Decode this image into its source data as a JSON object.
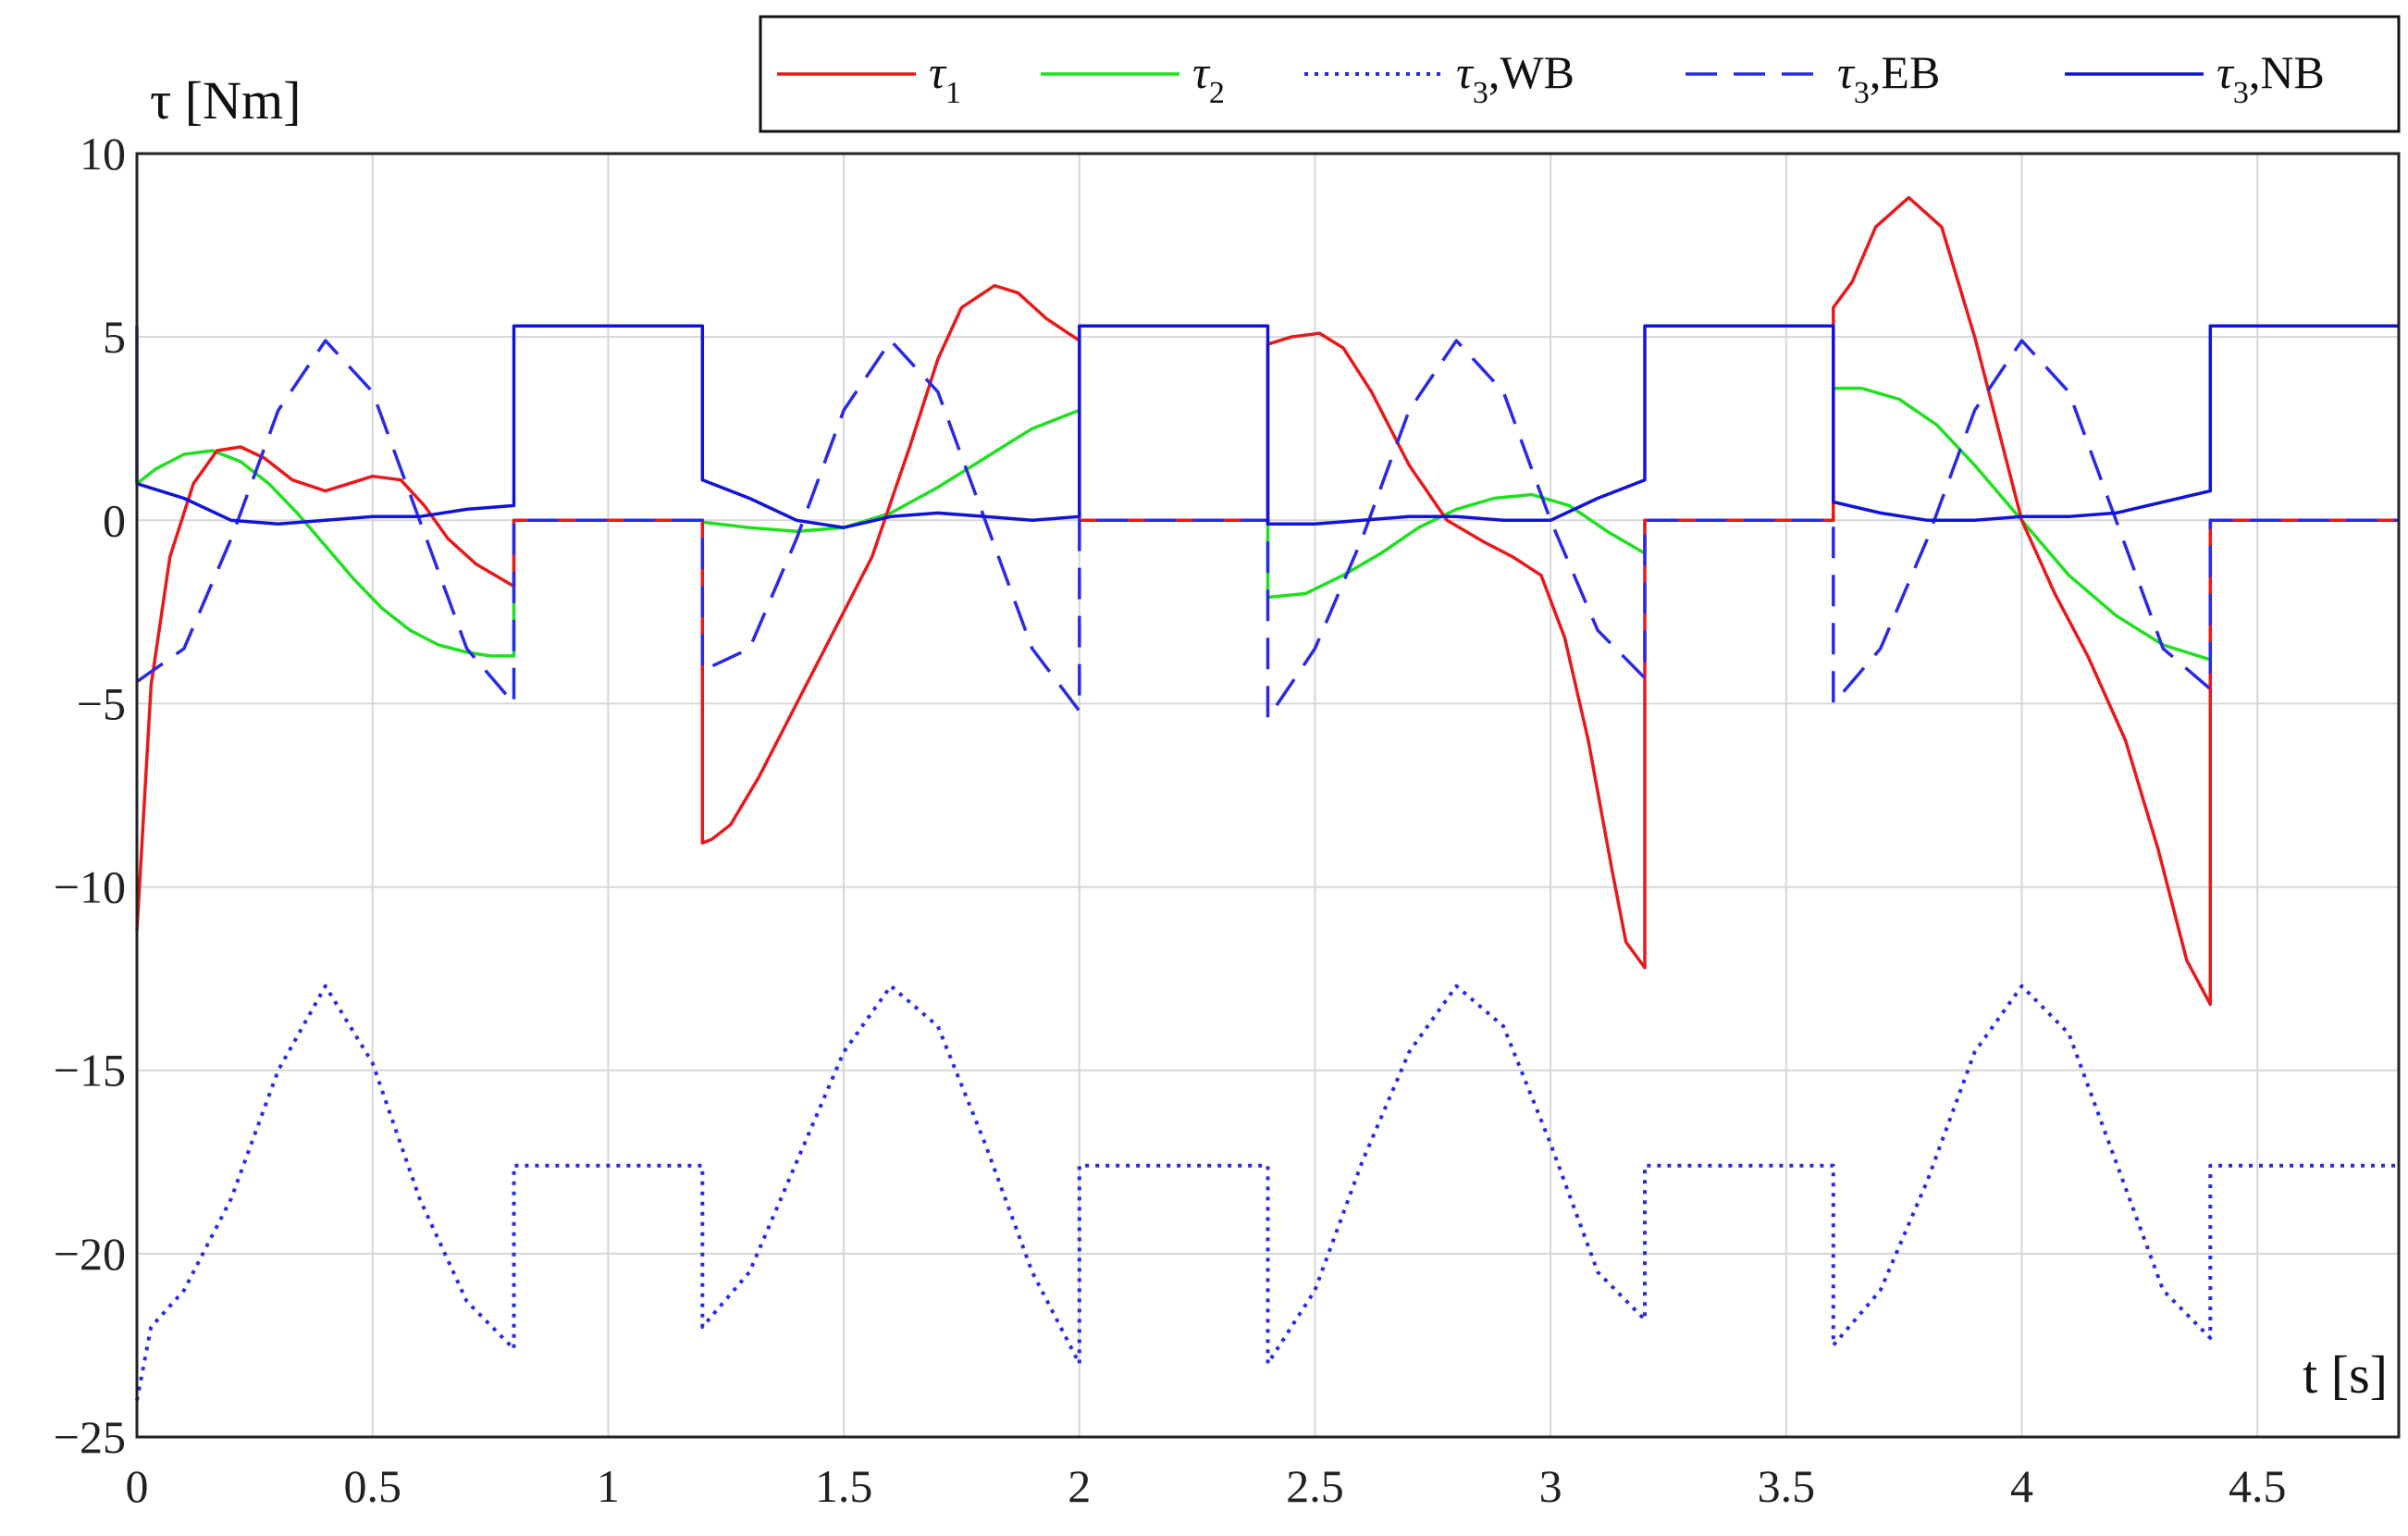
{
  "chart_data": {
    "type": "line",
    "xlabel": "t [s]",
    "ylabel": "τ [Nm]",
    "xlim": [
      0,
      4.8
    ],
    "ylim": [
      -25,
      10
    ],
    "xticks": [
      0,
      0.5,
      1,
      1.5,
      2,
      2.5,
      3,
      3.5,
      4,
      4.5
    ],
    "xtick_labels": [
      "0",
      "0.5",
      "1",
      "1.5",
      "2",
      "2.5",
      "3",
      "3.5",
      "4",
      "4.5"
    ],
    "yticks": [
      10,
      5,
      0,
      -5,
      -10,
      -15,
      -20,
      -25
    ],
    "ytick_labels": [
      "10",
      "5",
      "0",
      "−5",
      "−10",
      "−15",
      "−20",
      "−25"
    ],
    "grid": true,
    "legend_position": "top-right, outside above plot",
    "series": [
      {
        "name": "τ1",
        "legend": {
          "symbol": "τ",
          "sub": "1",
          "suffix": ""
        },
        "color": "#e8191b",
        "style": "solid",
        "x": [
          0,
          0.03,
          0.07,
          0.12,
          0.17,
          0.22,
          0.27,
          0.33,
          0.4,
          0.45,
          0.5,
          0.56,
          0.61,
          0.66,
          0.72,
          0.8,
          0.8,
          1.2,
          1.2,
          1.22,
          1.26,
          1.32,
          1.4,
          1.48,
          1.56,
          1.64,
          1.7,
          1.75,
          1.82,
          1.87,
          1.93,
          2.0,
          2.0,
          2.4,
          2.4,
          2.45,
          2.51,
          2.56,
          2.62,
          2.7,
          2.78,
          2.86,
          2.92,
          2.98,
          3.03,
          3.08,
          3.13,
          3.16,
          3.2,
          3.2,
          3.6,
          3.6,
          3.64,
          3.69,
          3.76,
          3.83,
          3.9,
          3.96,
          4.0,
          4.07,
          4.14,
          4.22,
          4.29,
          4.35,
          4.4,
          4.4,
          4.8
        ],
        "y": [
          -11.2,
          -4.5,
          -1.0,
          1.0,
          1.9,
          2.0,
          1.7,
          1.1,
          0.8,
          1.0,
          1.2,
          1.1,
          0.4,
          -0.5,
          -1.2,
          -1.8,
          0,
          0,
          -8.8,
          -8.7,
          -8.3,
          -7.0,
          -5.0,
          -3.0,
          -1.0,
          2.0,
          4.4,
          5.8,
          6.4,
          6.2,
          5.5,
          4.9,
          0,
          0,
          4.8,
          5.0,
          5.1,
          4.7,
          3.5,
          1.5,
          0.0,
          -0.6,
          -1.0,
          -1.5,
          -3.2,
          -6.0,
          -9.5,
          -11.5,
          -12.2,
          0,
          0,
          5.8,
          6.5,
          8.0,
          8.8,
          8.0,
          5.0,
          2.0,
          0.0,
          -2.0,
          -3.7,
          -6.0,
          -9.0,
          -12.0,
          -13.2,
          0,
          0
        ]
      },
      {
        "name": "τ2",
        "legend": {
          "symbol": "τ",
          "sub": "2",
          "suffix": ""
        },
        "color": "#1fe01f",
        "style": "solid",
        "x": [
          0,
          0.04,
          0.1,
          0.16,
          0.22,
          0.28,
          0.34,
          0.4,
          0.46,
          0.52,
          0.58,
          0.64,
          0.7,
          0.75,
          0.8,
          0.8,
          1.2,
          1.2,
          1.3,
          1.4,
          1.5,
          1.6,
          1.7,
          1.8,
          1.9,
          2.0,
          2.0,
          2.4,
          2.4,
          2.48,
          2.56,
          2.64,
          2.72,
          2.8,
          2.88,
          2.96,
          3.04,
          3.12,
          3.2,
          3.2,
          3.6,
          3.6,
          3.66,
          3.74,
          3.82,
          3.9,
          4.0,
          4.1,
          4.2,
          4.3,
          4.4,
          4.4,
          4.8
        ],
        "y": [
          1.0,
          1.4,
          1.8,
          1.9,
          1.6,
          1.0,
          0.2,
          -0.7,
          -1.6,
          -2.4,
          -3.0,
          -3.4,
          -3.6,
          -3.7,
          -3.7,
          0,
          0,
          -0.05,
          -0.2,
          -0.3,
          -0.2,
          0.2,
          0.9,
          1.7,
          2.5,
          3.0,
          0,
          0,
          -2.1,
          -2.0,
          -1.5,
          -0.9,
          -0.2,
          0.3,
          0.6,
          0.7,
          0.4,
          -0.3,
          -0.9,
          0,
          0,
          3.6,
          3.6,
          3.3,
          2.6,
          1.5,
          0.0,
          -1.5,
          -2.6,
          -3.4,
          -3.8,
          0,
          0
        ]
      },
      {
        "name": "τ3,WB",
        "legend": {
          "symbol": "τ",
          "sub": "3",
          "suffix": ",WB"
        },
        "color": "#2a2ae6",
        "style": "dotted",
        "x": [
          0,
          0.03,
          0.1,
          0.2,
          0.3,
          0.4,
          0.5,
          0.6,
          0.7,
          0.8,
          0.8,
          1.2,
          1.2,
          1.3,
          1.4,
          1.5,
          1.6,
          1.7,
          1.8,
          1.9,
          2.0,
          2.0,
          2.4,
          2.4,
          2.5,
          2.6,
          2.7,
          2.8,
          2.9,
          3.0,
          3.1,
          3.2,
          3.2,
          3.6,
          3.6,
          3.7,
          3.8,
          3.9,
          4.0,
          4.1,
          4.2,
          4.3,
          4.4,
          4.4,
          4.8
        ],
        "y": [
          -24.0,
          -22.0,
          -21.0,
          -18.5,
          -15.0,
          -12.7,
          -14.8,
          -18.5,
          -21.3,
          -22.6,
          -17.6,
          -17.6,
          -22.0,
          -20.5,
          -17.5,
          -14.5,
          -12.7,
          -13.8,
          -17.0,
          -20.5,
          -23.0,
          -17.6,
          -17.6,
          -23.0,
          -21.0,
          -17.5,
          -14.5,
          -12.7,
          -13.8,
          -17.0,
          -20.5,
          -21.8,
          -17.6,
          -17.6,
          -22.5,
          -21.0,
          -18.0,
          -14.5,
          -12.7,
          -14.0,
          -17.5,
          -21.0,
          -22.3,
          -17.6,
          -17.6
        ]
      },
      {
        "name": "τ3,EB",
        "legend": {
          "symbol": "τ",
          "sub": "3",
          "suffix": ",EB"
        },
        "color": "#2a2ae6",
        "style": "dashed",
        "x": [
          0,
          0.1,
          0.2,
          0.3,
          0.4,
          0.5,
          0.6,
          0.7,
          0.8,
          0.8,
          1.2,
          1.2,
          1.3,
          1.4,
          1.5,
          1.6,
          1.7,
          1.8,
          1.9,
          2.0,
          2.0,
          2.4,
          2.4,
          2.5,
          2.6,
          2.7,
          2.8,
          2.9,
          3.0,
          3.1,
          3.2,
          3.2,
          3.6,
          3.6,
          3.7,
          3.8,
          3.9,
          4.0,
          4.1,
          4.2,
          4.3,
          4.4,
          4.4,
          4.8
        ],
        "y": [
          -4.4,
          -3.5,
          -0.5,
          3.0,
          4.9,
          3.5,
          0.0,
          -3.5,
          -5.0,
          0,
          0,
          -4.1,
          -3.5,
          -0.5,
          3.0,
          4.9,
          3.5,
          0.0,
          -3.5,
          -5.2,
          0,
          0,
          -5.4,
          -3.5,
          -0.5,
          3.0,
          4.9,
          3.5,
          0.0,
          -3.0,
          -4.3,
          0,
          0,
          -5.0,
          -3.5,
          -0.5,
          3.0,
          4.9,
          3.5,
          0.0,
          -3.5,
          -4.6,
          0,
          0
        ]
      },
      {
        "name": "τ3,NB",
        "legend": {
          "symbol": "τ",
          "sub": "3",
          "suffix": ",NB"
        },
        "color": "#1212d8",
        "style": "solid",
        "x": [
          0,
          0.0,
          0.1,
          0.2,
          0.3,
          0.4,
          0.5,
          0.6,
          0.7,
          0.8,
          0.8,
          1.2,
          1.2,
          1.3,
          1.4,
          1.5,
          1.6,
          1.7,
          1.8,
          1.9,
          2.0,
          2.0,
          2.4,
          2.4,
          2.5,
          2.6,
          2.7,
          2.8,
          2.9,
          3.0,
          3.1,
          3.2,
          3.2,
          3.6,
          3.6,
          3.7,
          3.8,
          3.9,
          4.0,
          4.1,
          4.2,
          4.3,
          4.4,
          4.4,
          4.8
        ],
        "y": [
          5.3,
          1.0,
          0.6,
          0.0,
          -0.1,
          0.0,
          0.1,
          0.1,
          0.3,
          0.4,
          5.3,
          5.3,
          1.1,
          0.6,
          0.0,
          -0.2,
          0.1,
          0.2,
          0.1,
          0.0,
          0.1,
          5.3,
          5.3,
          -0.1,
          -0.1,
          0.0,
          0.1,
          0.1,
          0.0,
          0.0,
          0.6,
          1.1,
          5.3,
          5.3,
          0.5,
          0.2,
          0.0,
          0.0,
          0.1,
          0.1,
          0.2,
          0.5,
          0.8,
          5.3,
          5.3
        ]
      }
    ]
  }
}
